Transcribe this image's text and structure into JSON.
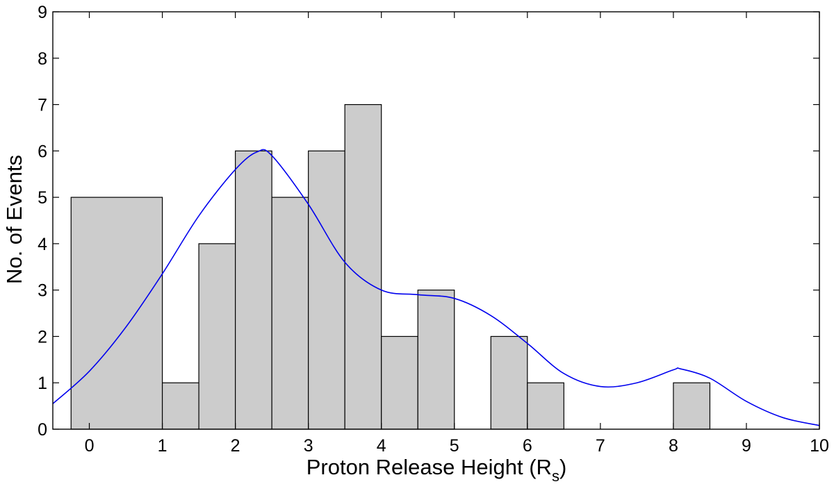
{
  "chart_data": {
    "type": "bar",
    "title": "",
    "xlabel": "Proton Release Height (R",
    "xlabel_subscript": "s",
    "xlabel_close": ")",
    "ylabel": "No. of Events",
    "xlim": [
      -0.5,
      10
    ],
    "ylim": [
      0,
      9
    ],
    "xticks": [
      0,
      1,
      2,
      3,
      4,
      5,
      6,
      7,
      8,
      9,
      10
    ],
    "yticks": [
      0,
      1,
      2,
      3,
      4,
      5,
      6,
      7,
      8,
      9
    ],
    "grid": false,
    "bars": [
      {
        "x0": -0.25,
        "x1": 1.0,
        "value": 5
      },
      {
        "x0": 1.0,
        "x1": 1.5,
        "value": 1
      },
      {
        "x0": 1.5,
        "x1": 2.0,
        "value": 4
      },
      {
        "x0": 2.0,
        "x1": 2.5,
        "value": 6
      },
      {
        "x0": 2.5,
        "x1": 3.0,
        "value": 5
      },
      {
        "x0": 3.0,
        "x1": 3.5,
        "value": 6
      },
      {
        "x0": 3.5,
        "x1": 4.0,
        "value": 7
      },
      {
        "x0": 4.0,
        "x1": 4.5,
        "value": 2
      },
      {
        "x0": 4.5,
        "x1": 5.0,
        "value": 3
      },
      {
        "x0": 5.5,
        "x1": 6.0,
        "value": 2
      },
      {
        "x0": 6.0,
        "x1": 6.5,
        "value": 1
      },
      {
        "x0": 8.0,
        "x1": 8.5,
        "value": 1
      }
    ],
    "curve": {
      "x": [
        -0.5,
        0,
        0.5,
        1,
        1.5,
        2,
        2.3,
        2.5,
        3,
        3.5,
        4,
        4.5,
        5,
        5.5,
        6,
        6.5,
        7,
        7.5,
        8,
        8.1,
        8.5,
        9,
        9.5,
        10
      ],
      "y": [
        0.55,
        1.25,
        2.2,
        3.35,
        4.6,
        5.6,
        5.98,
        5.9,
        4.85,
        3.6,
        3.0,
        2.9,
        2.82,
        2.45,
        1.85,
        1.2,
        0.92,
        1.0,
        1.28,
        1.3,
        1.1,
        0.6,
        0.25,
        0.08
      ]
    },
    "colors": {
      "bar_fill": "#cccccc",
      "bar_edge": "#000000",
      "curve": "#0000ee"
    }
  }
}
